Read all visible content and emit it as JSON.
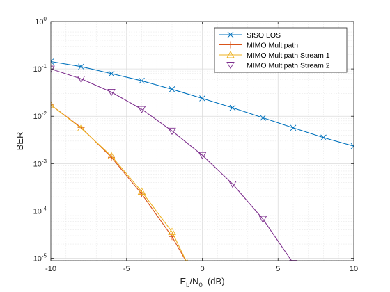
{
  "chart_data": {
    "type": "line",
    "title": "",
    "xlabel": "E_b/N_0  (dB)",
    "ylabel": "BER",
    "xlim": [
      -10,
      10
    ],
    "ylim_log10": [
      -5.05,
      0
    ],
    "yscale": "log",
    "grid": "major and minor",
    "legend_position": "top-right",
    "x_ticks": [
      "-10",
      "-5",
      "0",
      "5",
      "10"
    ],
    "y_ticks": [
      "10^0",
      "10^-1",
      "10^-2",
      "10^-3",
      "10^-4",
      "10^-5"
    ],
    "series": [
      {
        "name": "SISO LOS",
        "color": "#0072BD",
        "marker": "x",
        "x": [
          -10,
          -8,
          -6,
          -4,
          -2,
          0,
          2,
          4,
          6,
          8,
          10
        ],
        "y": [
          0.143,
          0.112,
          0.0794,
          0.0562,
          0.0372,
          0.0239,
          0.0151,
          0.0093,
          0.0057,
          0.00355,
          0.00234
        ]
      },
      {
        "name": "MIMO Multipath",
        "color": "#D95319",
        "marker": "+",
        "x": [
          -10,
          -8,
          -6,
          -4,
          -2,
          -1
        ],
        "y": [
          0.0174,
          0.0058,
          0.00136,
          0.000229,
          2.88e-05,
          7.9e-06
        ]
      },
      {
        "name": "MIMO Multipath Stream 1",
        "color": "#EDB120",
        "marker": "triangle-up",
        "x": [
          -10,
          -8,
          -6,
          -4,
          -2,
          -1
        ],
        "y": [
          0.0174,
          0.0056,
          0.00145,
          0.000257,
          3.63e-05,
          7.9e-06
        ]
      },
      {
        "name": "MIMO Multipath Stream 2",
        "color": "#7E2F8E",
        "marker": "triangle-down",
        "x": [
          -10,
          -8,
          -6,
          -4,
          -2,
          0,
          2,
          4,
          6
        ],
        "y": [
          0.1,
          0.0617,
          0.0324,
          0.0141,
          0.0049,
          0.00151,
          0.000372,
          6.76e-05,
          7.9e-06
        ]
      }
    ]
  }
}
